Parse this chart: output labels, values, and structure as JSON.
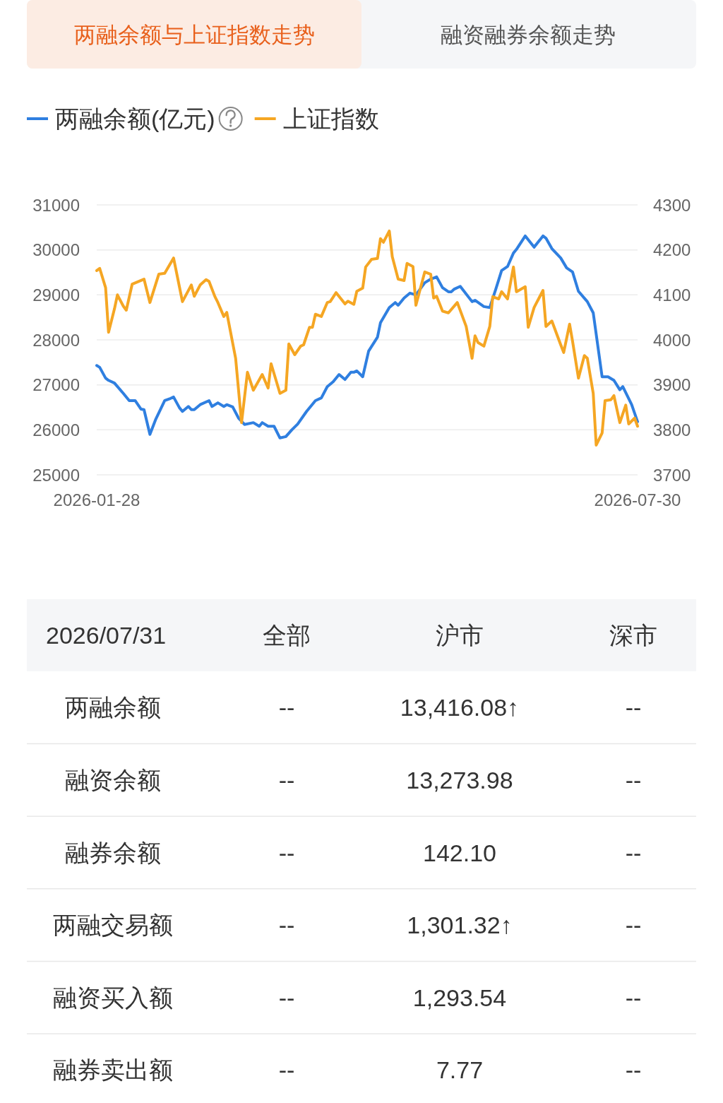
{
  "chart_data": [
    {
      "type": "line",
      "title": "两融余额与上证指数走势",
      "annotations": [
        "融资融券余额走势"
      ],
      "legend": "top left",
      "grid": "y",
      "xlim": [
        "2026-01-28",
        "2026-07-30"
      ],
      "xticks": [
        "2026-01-28",
        "2026-07-30"
      ],
      "ylim": [
        25000,
        31000
      ],
      "yticks": [
        25000,
        26000,
        27000,
        28000,
        29000,
        30000,
        31000
      ],
      "y2lim": [
        3700,
        4300
      ],
      "y2ticks": [
        3700,
        3800,
        3900,
        4000,
        4100,
        4200,
        4300
      ],
      "series": [
        {
          "name": "两融余额(亿元)",
          "color": "#2f7fe0",
          "x": [
            "2026-01-28",
            "2026-01-29",
            "2026-01-31",
            "2026-02-01",
            "2026-02-03",
            "2026-02-06",
            "2026-02-08",
            "2026-02-10",
            "2026-02-12",
            "2026-02-13",
            "2026-02-15",
            "2026-02-17",
            "2026-02-20",
            "2026-02-22",
            "2026-02-23",
            "2026-02-25",
            "2026-02-26",
            "2026-02-28",
            "2026-03-01",
            "2026-03-02",
            "2026-03-04",
            "2026-03-07",
            "2026-03-08",
            "2026-03-10",
            "2026-03-12",
            "2026-03-13",
            "2026-03-15",
            "2026-03-17",
            "2026-03-19",
            "2026-03-22",
            "2026-03-24",
            "2026-03-25",
            "2026-03-27",
            "2026-03-29",
            "2026-03-31",
            "2026-04-02",
            "2026-04-04",
            "2026-04-06",
            "2026-04-09",
            "2026-04-12",
            "2026-04-14",
            "2026-04-16",
            "2026-04-18",
            "2026-04-20",
            "2026-04-22",
            "2026-04-24",
            "2026-04-25",
            "2026-04-26",
            "2026-04-28",
            "2026-04-30",
            "2026-05-03",
            "2026-05-04",
            "2026-05-07",
            "2026-05-09",
            "2026-05-10",
            "2026-05-12",
            "2026-05-14",
            "2026-05-16",
            "2026-05-19",
            "2026-05-21",
            "2026-05-23",
            "2026-05-25",
            "2026-05-27",
            "2026-05-28",
            "2026-05-29",
            "2026-05-31",
            "2026-06-04",
            "2026-06-05",
            "2026-06-08",
            "2026-06-10",
            "2026-06-12",
            "2026-06-14",
            "2026-06-16",
            "2026-06-18",
            "2026-06-19",
            "2026-06-22",
            "2026-06-25",
            "2026-06-28",
            "2026-06-29",
            "2026-07-01",
            "2026-07-04",
            "2026-07-06",
            "2026-07-08",
            "2026-07-10",
            "2026-07-13",
            "2026-07-15",
            "2026-07-18",
            "2026-07-20",
            "2026-07-22",
            "2026-07-24",
            "2026-07-25",
            "2026-07-28",
            "2026-07-30"
          ],
          "values": [
            27430,
            27390,
            27150,
            27100,
            27040,
            26810,
            26650,
            26650,
            26460,
            26450,
            25900,
            26240,
            26650,
            26700,
            26730,
            26490,
            26410,
            26520,
            26450,
            26450,
            26560,
            26650,
            26520,
            26600,
            26520,
            26560,
            26510,
            26260,
            26120,
            26160,
            26080,
            26160,
            26080,
            26080,
            25820,
            25850,
            26000,
            26130,
            26410,
            26650,
            26710,
            26960,
            27070,
            27230,
            27120,
            27280,
            27280,
            27310,
            27180,
            27750,
            28060,
            28380,
            28720,
            28830,
            28770,
            28930,
            29040,
            29000,
            29270,
            29350,
            29400,
            29160,
            29070,
            29070,
            29130,
            29190,
            28850,
            28880,
            28740,
            28720,
            29120,
            29540,
            29630,
            29930,
            30010,
            30310,
            30060,
            30310,
            30260,
            30030,
            29820,
            29600,
            29510,
            29080,
            28850,
            28600,
            27180,
            27180,
            27100,
            26890,
            26960,
            26560,
            26180
          ]
        },
        {
          "name": "上证指数",
          "color": "#f5a623",
          "axis": "y2",
          "x": [
            "2026-01-28",
            "2026-01-29",
            "2026-01-31",
            "2026-02-01",
            "2026-02-03",
            "2026-02-04",
            "2026-02-06",
            "2026-02-07",
            "2026-02-09",
            "2026-02-13",
            "2026-02-15",
            "2026-02-18",
            "2026-02-20",
            "2026-02-23",
            "2026-02-26",
            "2026-03-01",
            "2026-03-02",
            "2026-03-04",
            "2026-03-06",
            "2026-03-07",
            "2026-03-09",
            "2026-03-10",
            "2026-03-12",
            "2026-03-13",
            "2026-03-16",
            "2026-03-18",
            "2026-03-20",
            "2026-03-22",
            "2026-03-25",
            "2026-03-27",
            "2026-03-28",
            "2026-03-31",
            "2026-04-02",
            "2026-04-03",
            "2026-04-05",
            "2026-04-07",
            "2026-04-08",
            "2026-04-10",
            "2026-04-11",
            "2026-04-12",
            "2026-04-14",
            "2026-04-16",
            "2026-04-17",
            "2026-04-19",
            "2026-04-22",
            "2026-04-23",
            "2026-04-25",
            "2026-04-26",
            "2026-04-28",
            "2026-04-29",
            "2026-05-01",
            "2026-05-03",
            "2026-05-04",
            "2026-05-05",
            "2026-05-07",
            "2026-05-08",
            "2026-05-10",
            "2026-05-12",
            "2026-05-13",
            "2026-05-15",
            "2026-05-16",
            "2026-05-19",
            "2026-05-21",
            "2026-05-22",
            "2026-05-23",
            "2026-05-25",
            "2026-05-27",
            "2026-05-30",
            "2026-06-02",
            "2026-06-04",
            "2026-06-05",
            "2026-06-06",
            "2026-06-08",
            "2026-06-10",
            "2026-06-11",
            "2026-06-13",
            "2026-06-14",
            "2026-06-16",
            "2026-06-18",
            "2026-06-19",
            "2026-06-22",
            "2026-06-23",
            "2026-06-25",
            "2026-06-28",
            "2026-06-29",
            "2026-07-01",
            "2026-07-04",
            "2026-07-05",
            "2026-07-07",
            "2026-07-08",
            "2026-07-10",
            "2026-07-12",
            "2026-07-13",
            "2026-07-15",
            "2026-07-16",
            "2026-07-18",
            "2026-07-19",
            "2026-07-21",
            "2026-07-22",
            "2026-07-24",
            "2026-07-26",
            "2026-07-27",
            "2026-07-29",
            "2026-07-30"
          ],
          "values": [
            4154,
            4159,
            4116,
            4017,
            4069,
            4100,
            4075,
            4066,
            4124,
            4135,
            4083,
            4146,
            4148,
            4182,
            4085,
            4122,
            4097,
            4122,
            4134,
            4130,
            4096,
            4083,
            4052,
            4061,
            3959,
            3816,
            3928,
            3888,
            3923,
            3893,
            3947,
            3881,
            3888,
            3991,
            3967,
            3986,
            3989,
            4028,
            4028,
            4057,
            4052,
            4083,
            4085,
            4105,
            4080,
            4086,
            4079,
            4108,
            4115,
            4162,
            4179,
            4181,
            4225,
            4217,
            4242,
            4185,
            4135,
            4132,
            4170,
            4163,
            4077,
            4151,
            4146,
            4093,
            4097,
            4064,
            4060,
            4083,
            4030,
            3959,
            4009,
            3994,
            3986,
            4030,
            4096,
            4091,
            4107,
            4091,
            4162,
            4107,
            4118,
            4028,
            4072,
            4110,
            4030,
            4042,
            3989,
            3972,
            4035,
            3997,
            3915,
            3965,
            3959,
            3881,
            3766,
            3793,
            3865,
            3867,
            3876,
            3816,
            3855,
            3813,
            3826,
            3808
          ]
        }
      ]
    },
    {
      "type": "other",
      "title": "2026/07/31",
      "categories": [
        "全部",
        "沪市",
        "深市"
      ],
      "y_categories": [
        "两融余额",
        "融资余额",
        "融券余额",
        "两融交易额",
        "融资买入额",
        "融券卖出额"
      ],
      "cell_labels": [
        [
          "--",
          "13,416.08↑",
          "--"
        ],
        [
          "--",
          "13,273.98",
          "--"
        ],
        [
          "--",
          "142.10",
          "--"
        ],
        [
          "--",
          "1,301.32↑",
          "--"
        ],
        [
          "--",
          "1,293.54",
          "--"
        ],
        [
          "--",
          "7.77",
          "--"
        ]
      ]
    }
  ]
}
